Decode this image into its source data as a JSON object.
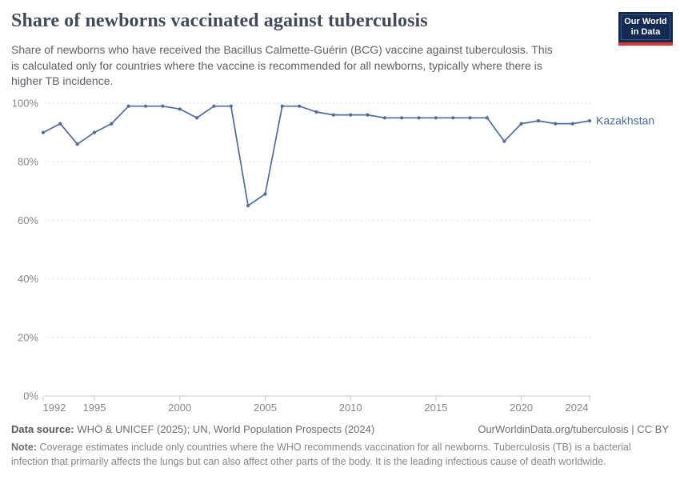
{
  "header": {
    "title": "Share of newborns vaccinated against tuberculosis",
    "subtitle": "Share of newborns who have received the Bacillus Calmette-Guérin (BCG) vaccine against tuberculosis. This\nis calculated only for countries where the vaccine is recommended for all newborns, typically where there is\nhigher TB incidence.",
    "logo": {
      "line1": "Our World",
      "line2": "in Data"
    }
  },
  "chart_data": {
    "type": "line",
    "title": "Share of newborns vaccinated against tuberculosis",
    "xlabel": "",
    "ylabel": "",
    "xlim": [
      1992,
      2024
    ],
    "ylim": [
      0,
      100
    ],
    "yticks": [
      0,
      20,
      40,
      60,
      80,
      100
    ],
    "ytick_suffix": "%",
    "xticks": [
      1992,
      1995,
      2000,
      2005,
      2010,
      2015,
      2020,
      2024
    ],
    "grid": "horizontal-dashed",
    "legend_position": "end-of-line",
    "series": [
      {
        "name": "Kazakhstan",
        "color": "#4C6BA8",
        "x": [
          1992,
          1993,
          1994,
          1995,
          1996,
          1997,
          1998,
          1999,
          2000,
          2001,
          2002,
          2003,
          2004,
          2005,
          2006,
          2007,
          2008,
          2009,
          2010,
          2011,
          2012,
          2013,
          2014,
          2015,
          2016,
          2017,
          2018,
          2019,
          2020,
          2021,
          2022,
          2023,
          2024
        ],
        "values": [
          90,
          93,
          86,
          90,
          93,
          99,
          99,
          99,
          98,
          95,
          99,
          99,
          65,
          69,
          99,
          99,
          97,
          96,
          96,
          96,
          95,
          95,
          95,
          95,
          95,
          95,
          95,
          87,
          93,
          94,
          93,
          93,
          94
        ]
      }
    ]
  },
  "footer": {
    "datasource_label": "Data source:",
    "datasource_text": " WHO & UNICEF (2025); UN, World Population Prospects (2024)",
    "rights": "OurWorldinData.org/tuberculosis | CC BY",
    "note_label": "Note:",
    "note_text": " Coverage estimates include only countries where the WHO recommends vaccination for all newborns. Tuberculosis (TB) is a bacterial infection that primarily affects the lungs but can also affect other parts of the body. It is the leading infectious cause of death worldwide."
  },
  "colors": {
    "line": "#4C6BA8",
    "title": "#3f4a5c",
    "gridline": "#dedede",
    "axis": "#c9c9c9",
    "tick_text": "#878787",
    "logo_bg": "#132a52",
    "logo_red": "#dc3b33"
  }
}
